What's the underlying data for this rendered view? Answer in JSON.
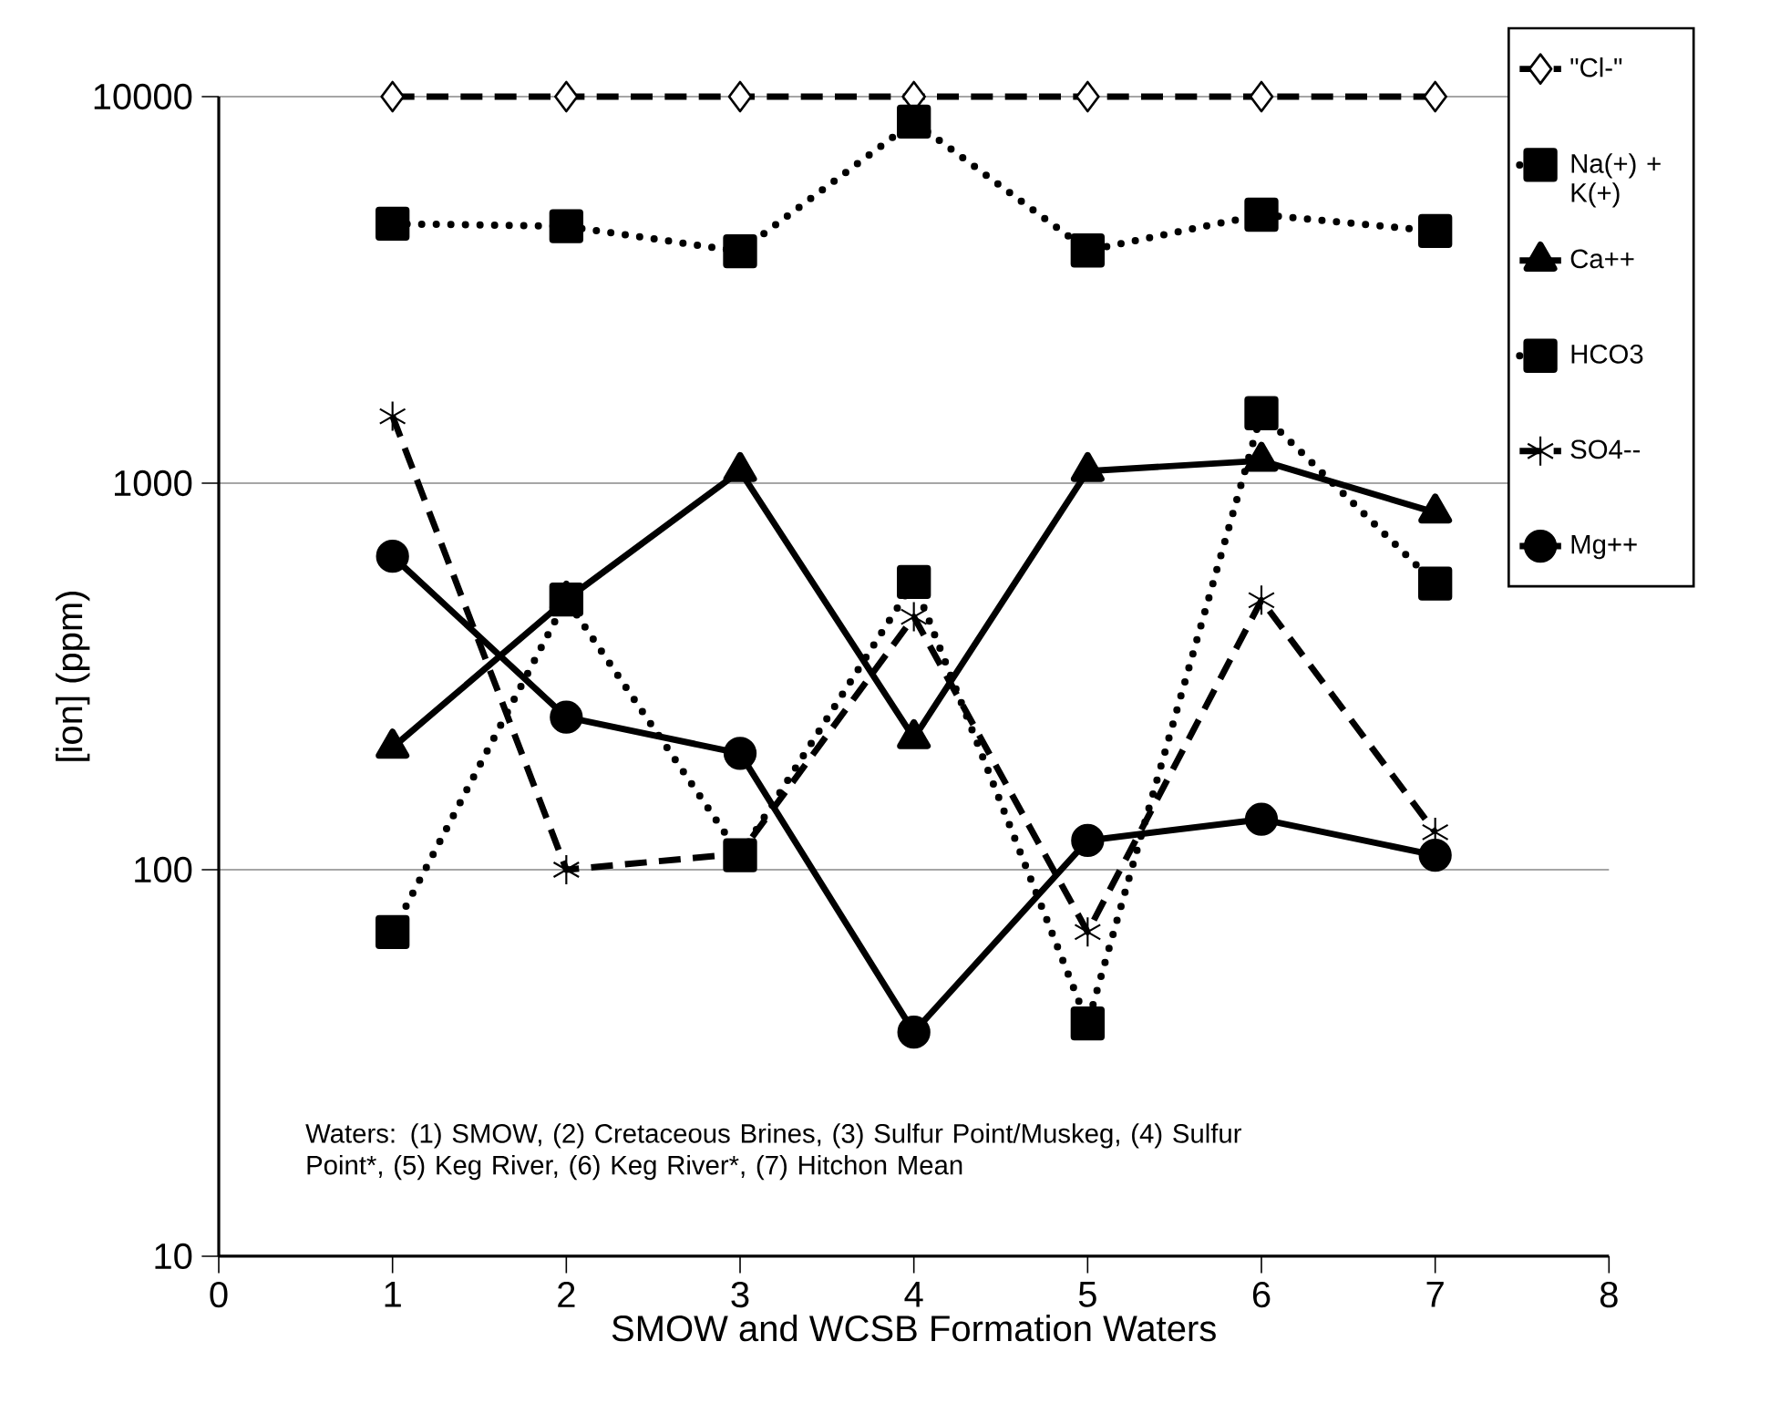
{
  "chart_data": {
    "type": "line",
    "xlabel": "SMOW and WCSB Formation Waters",
    "ylabel": "[ion] (ppm)",
    "x": [
      1,
      2,
      3,
      4,
      5,
      6,
      7
    ],
    "xlim": [
      0,
      8
    ],
    "xticks": [
      0,
      1,
      2,
      3,
      4,
      5,
      6,
      7,
      8
    ],
    "ylim": [
      10,
      10000
    ],
    "yticks": [
      10,
      100,
      1000,
      10000
    ],
    "log": "y",
    "grid": "y",
    "legend": "right",
    "series": [
      {
        "name": "\"Cl-\"",
        "color": "#000000",
        "marker": "diamond",
        "line_style": "dashed",
        "values": [
          10000,
          10000,
          10000,
          10000,
          10000,
          10000,
          10000
        ]
      },
      {
        "name": "Na(+) + K(+)",
        "color": "#000000",
        "marker": "square",
        "line_style": "dotted",
        "values": [
          4690,
          4620,
          3980,
          8620,
          4000,
          4950,
          4490
        ]
      },
      {
        "name": "Ca++",
        "color": "#000000",
        "marker": "triangle",
        "line_style": "solid",
        "values": [
          207,
          500,
          1075,
          219,
          1075,
          1143,
          840
        ]
      },
      {
        "name": "HCO3",
        "color": "#000000",
        "marker": "square",
        "line_style": "dotted",
        "values": [
          69,
          500,
          109,
          555,
          40,
          1517,
          550
        ]
      },
      {
        "name": "SO4--",
        "color": "#000000",
        "marker": "cross",
        "line_style": "dashed",
        "values": [
          1490,
          100,
          110,
          451,
          69,
          498,
          125
        ]
      },
      {
        "name": "Mg++",
        "color": "#000000",
        "marker": "circle",
        "line_style": "solid",
        "values": [
          647,
          248,
          200,
          38,
          119,
          135,
          109
        ]
      }
    ],
    "annotations": [
      "Waters: (1) SMOW, (2) Cretaceous Brines, (3) Sulfur Point/Muskeg, (4) Sulfur Point*, (5)  Keg River, (6) Keg River*, (7) Hitchon Mean"
    ]
  }
}
